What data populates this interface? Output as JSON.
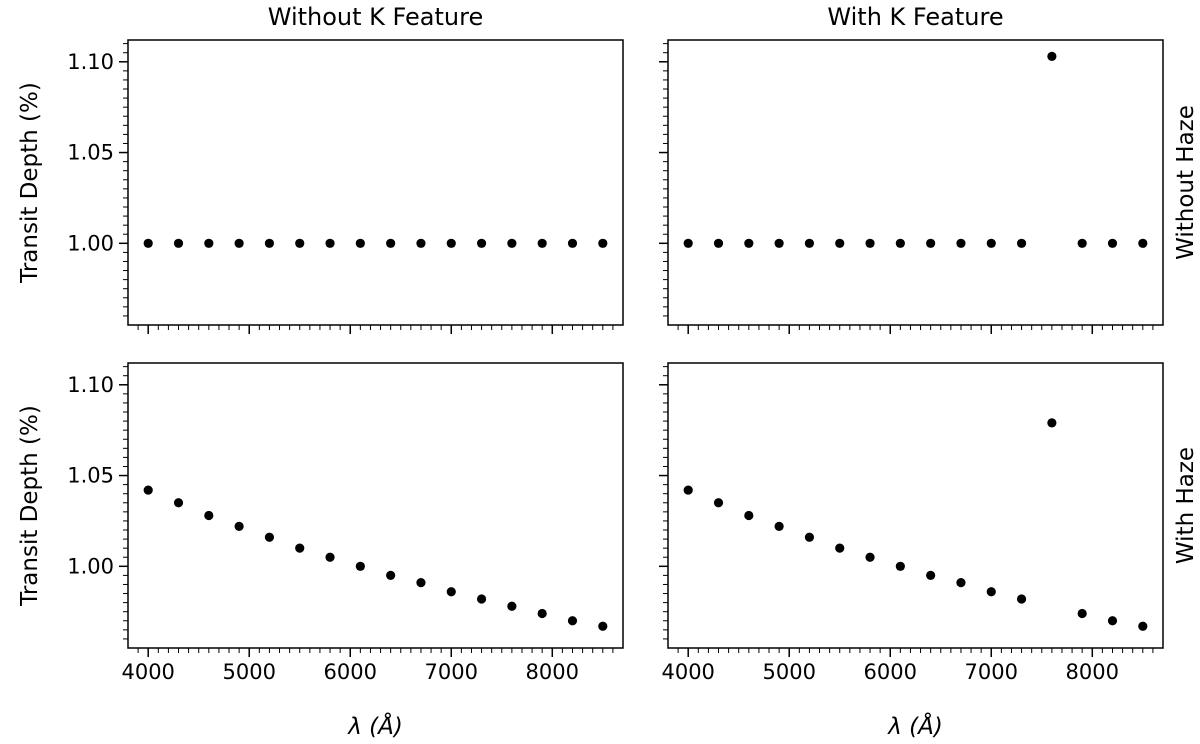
{
  "chart_data": {
    "type": "scatter",
    "layout": "2x2",
    "column_titles": [
      "Without K Feature",
      "With K Feature"
    ],
    "row_titles": [
      "Without Haze",
      "With Haze"
    ],
    "ylabel": "Transit Depth (%)",
    "xlabel": "λ (Å)",
    "xlim": [
      3800,
      8700
    ],
    "ylim": [
      0.955,
      1.112
    ],
    "xticks": [
      4000,
      5000,
      6000,
      7000,
      8000
    ],
    "xtick_labels": [
      "4000",
      "5000",
      "6000",
      "7000",
      "8000"
    ],
    "yticks": [
      1.0,
      1.05,
      1.1
    ],
    "ytick_labels": [
      "1.00",
      "1.05",
      "1.10"
    ],
    "marker_color": "#000000",
    "panels": [
      {
        "row": 0,
        "col": 0,
        "x": [
          4000,
          4300,
          4600,
          4900,
          5200,
          5500,
          5800,
          6100,
          6400,
          6700,
          7000,
          7300,
          7600,
          7900,
          8200,
          8500
        ],
        "y": [
          1.0,
          1.0,
          1.0,
          1.0,
          1.0,
          1.0,
          1.0,
          1.0,
          1.0,
          1.0,
          1.0,
          1.0,
          1.0,
          1.0,
          1.0,
          1.0
        ]
      },
      {
        "row": 0,
        "col": 1,
        "x": [
          4000,
          4300,
          4600,
          4900,
          5200,
          5500,
          5800,
          6100,
          6400,
          6700,
          7000,
          7300,
          7600,
          7900,
          8200,
          8500
        ],
        "y": [
          1.0,
          1.0,
          1.0,
          1.0,
          1.0,
          1.0,
          1.0,
          1.0,
          1.0,
          1.0,
          1.0,
          1.0,
          1.103,
          1.0,
          1.0,
          1.0
        ]
      },
      {
        "row": 1,
        "col": 0,
        "x": [
          4000,
          4300,
          4600,
          4900,
          5200,
          5500,
          5800,
          6100,
          6400,
          6700,
          7000,
          7300,
          7600,
          7900,
          8200,
          8500
        ],
        "y": [
          1.042,
          1.035,
          1.028,
          1.022,
          1.016,
          1.01,
          1.005,
          1.0,
          0.995,
          0.991,
          0.986,
          0.982,
          0.978,
          0.974,
          0.97,
          0.967
        ]
      },
      {
        "row": 1,
        "col": 1,
        "x": [
          4000,
          4300,
          4600,
          4900,
          5200,
          5500,
          5800,
          6100,
          6400,
          6700,
          7000,
          7300,
          7600,
          7900,
          8200,
          8500
        ],
        "y": [
          1.042,
          1.035,
          1.028,
          1.022,
          1.016,
          1.01,
          1.005,
          1.0,
          0.995,
          0.991,
          0.986,
          0.982,
          1.079,
          0.974,
          0.97,
          0.967
        ]
      }
    ]
  }
}
